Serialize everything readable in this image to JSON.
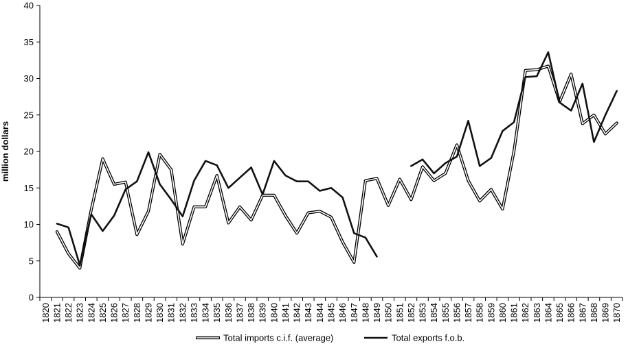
{
  "chart_data": {
    "type": "line",
    "title": "",
    "xlabel": "",
    "ylabel": "million dollars",
    "ylim": [
      0,
      40
    ],
    "yticks": [
      0,
      5,
      10,
      15,
      20,
      25,
      30,
      35,
      40
    ],
    "grid": false,
    "legend_position": "bottom",
    "x": [
      1820,
      1821,
      1822,
      1823,
      1824,
      1825,
      1826,
      1827,
      1828,
      1829,
      1830,
      1831,
      1832,
      1833,
      1834,
      1835,
      1836,
      1837,
      1838,
      1839,
      1840,
      1841,
      1842,
      1843,
      1844,
      1845,
      1846,
      1847,
      1848,
      1849,
      1850,
      1851,
      1852,
      1853,
      1854,
      1855,
      1856,
      1857,
      1858,
      1859,
      1860,
      1861,
      1862,
      1863,
      1864,
      1865,
      1866,
      1867,
      1868,
      1869,
      1870
    ],
    "series": [
      {
        "name": "Total imports c.i.f. (average)",
        "style": "double-line",
        "values": [
          null,
          9.0,
          6.0,
          4.0,
          12.0,
          19.0,
          15.5,
          15.8,
          8.6,
          11.8,
          19.6,
          17.5,
          7.3,
          12.4,
          12.4,
          16.7,
          10.2,
          12.4,
          10.6,
          14.0,
          14.0,
          11.2,
          8.8,
          11.6,
          11.8,
          11.0,
          7.6,
          4.8,
          16.0,
          16.3,
          12.6,
          16.2,
          13.4,
          17.9,
          16.0,
          17.0,
          20.9,
          16.0,
          13.2,
          14.8,
          12.1,
          20.0,
          31.1,
          31.2,
          31.7,
          26.8,
          30.6,
          23.8,
          25.0,
          22.4,
          23.9
        ]
      },
      {
        "name": "Total exports f.o.b.",
        "style": "solid",
        "values": [
          null,
          10.1,
          9.6,
          4.4,
          11.4,
          9.1,
          11.2,
          14.8,
          15.9,
          19.9,
          15.5,
          13.4,
          11.1,
          16.0,
          18.7,
          18.1,
          15.0,
          16.4,
          17.8,
          14.1,
          18.7,
          16.7,
          15.9,
          15.9,
          14.6,
          15.0,
          13.7,
          8.8,
          8.2,
          5.6,
          null,
          null,
          18.0,
          18.9,
          17.0,
          18.4,
          19.3,
          24.2,
          18.0,
          19.1,
          22.8,
          24.0,
          30.2,
          30.3,
          33.6,
          26.7,
          25.6,
          29.3,
          21.3,
          25.0,
          28.3
        ]
      }
    ]
  }
}
